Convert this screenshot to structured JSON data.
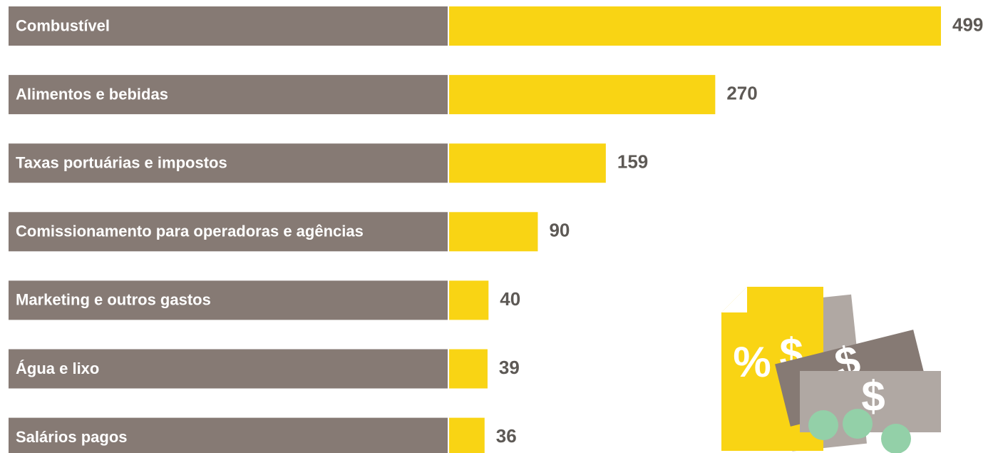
{
  "chart_data": {
    "type": "bar",
    "orientation": "horizontal",
    "categories": [
      "Combustível",
      "Alimentos e bebidas",
      "Taxas portuárias e impostos",
      "Comissionamento para operadoras e agências",
      "Marketing e outros gastos",
      "Água e lixo",
      "Salários pagos"
    ],
    "values": [
      499,
      270,
      159,
      90,
      40,
      39,
      36
    ],
    "color": "#f9d414",
    "label_box_color": "#867a74"
  },
  "illustration": {
    "symbols": [
      "%",
      "$",
      "$",
      "$"
    ]
  }
}
